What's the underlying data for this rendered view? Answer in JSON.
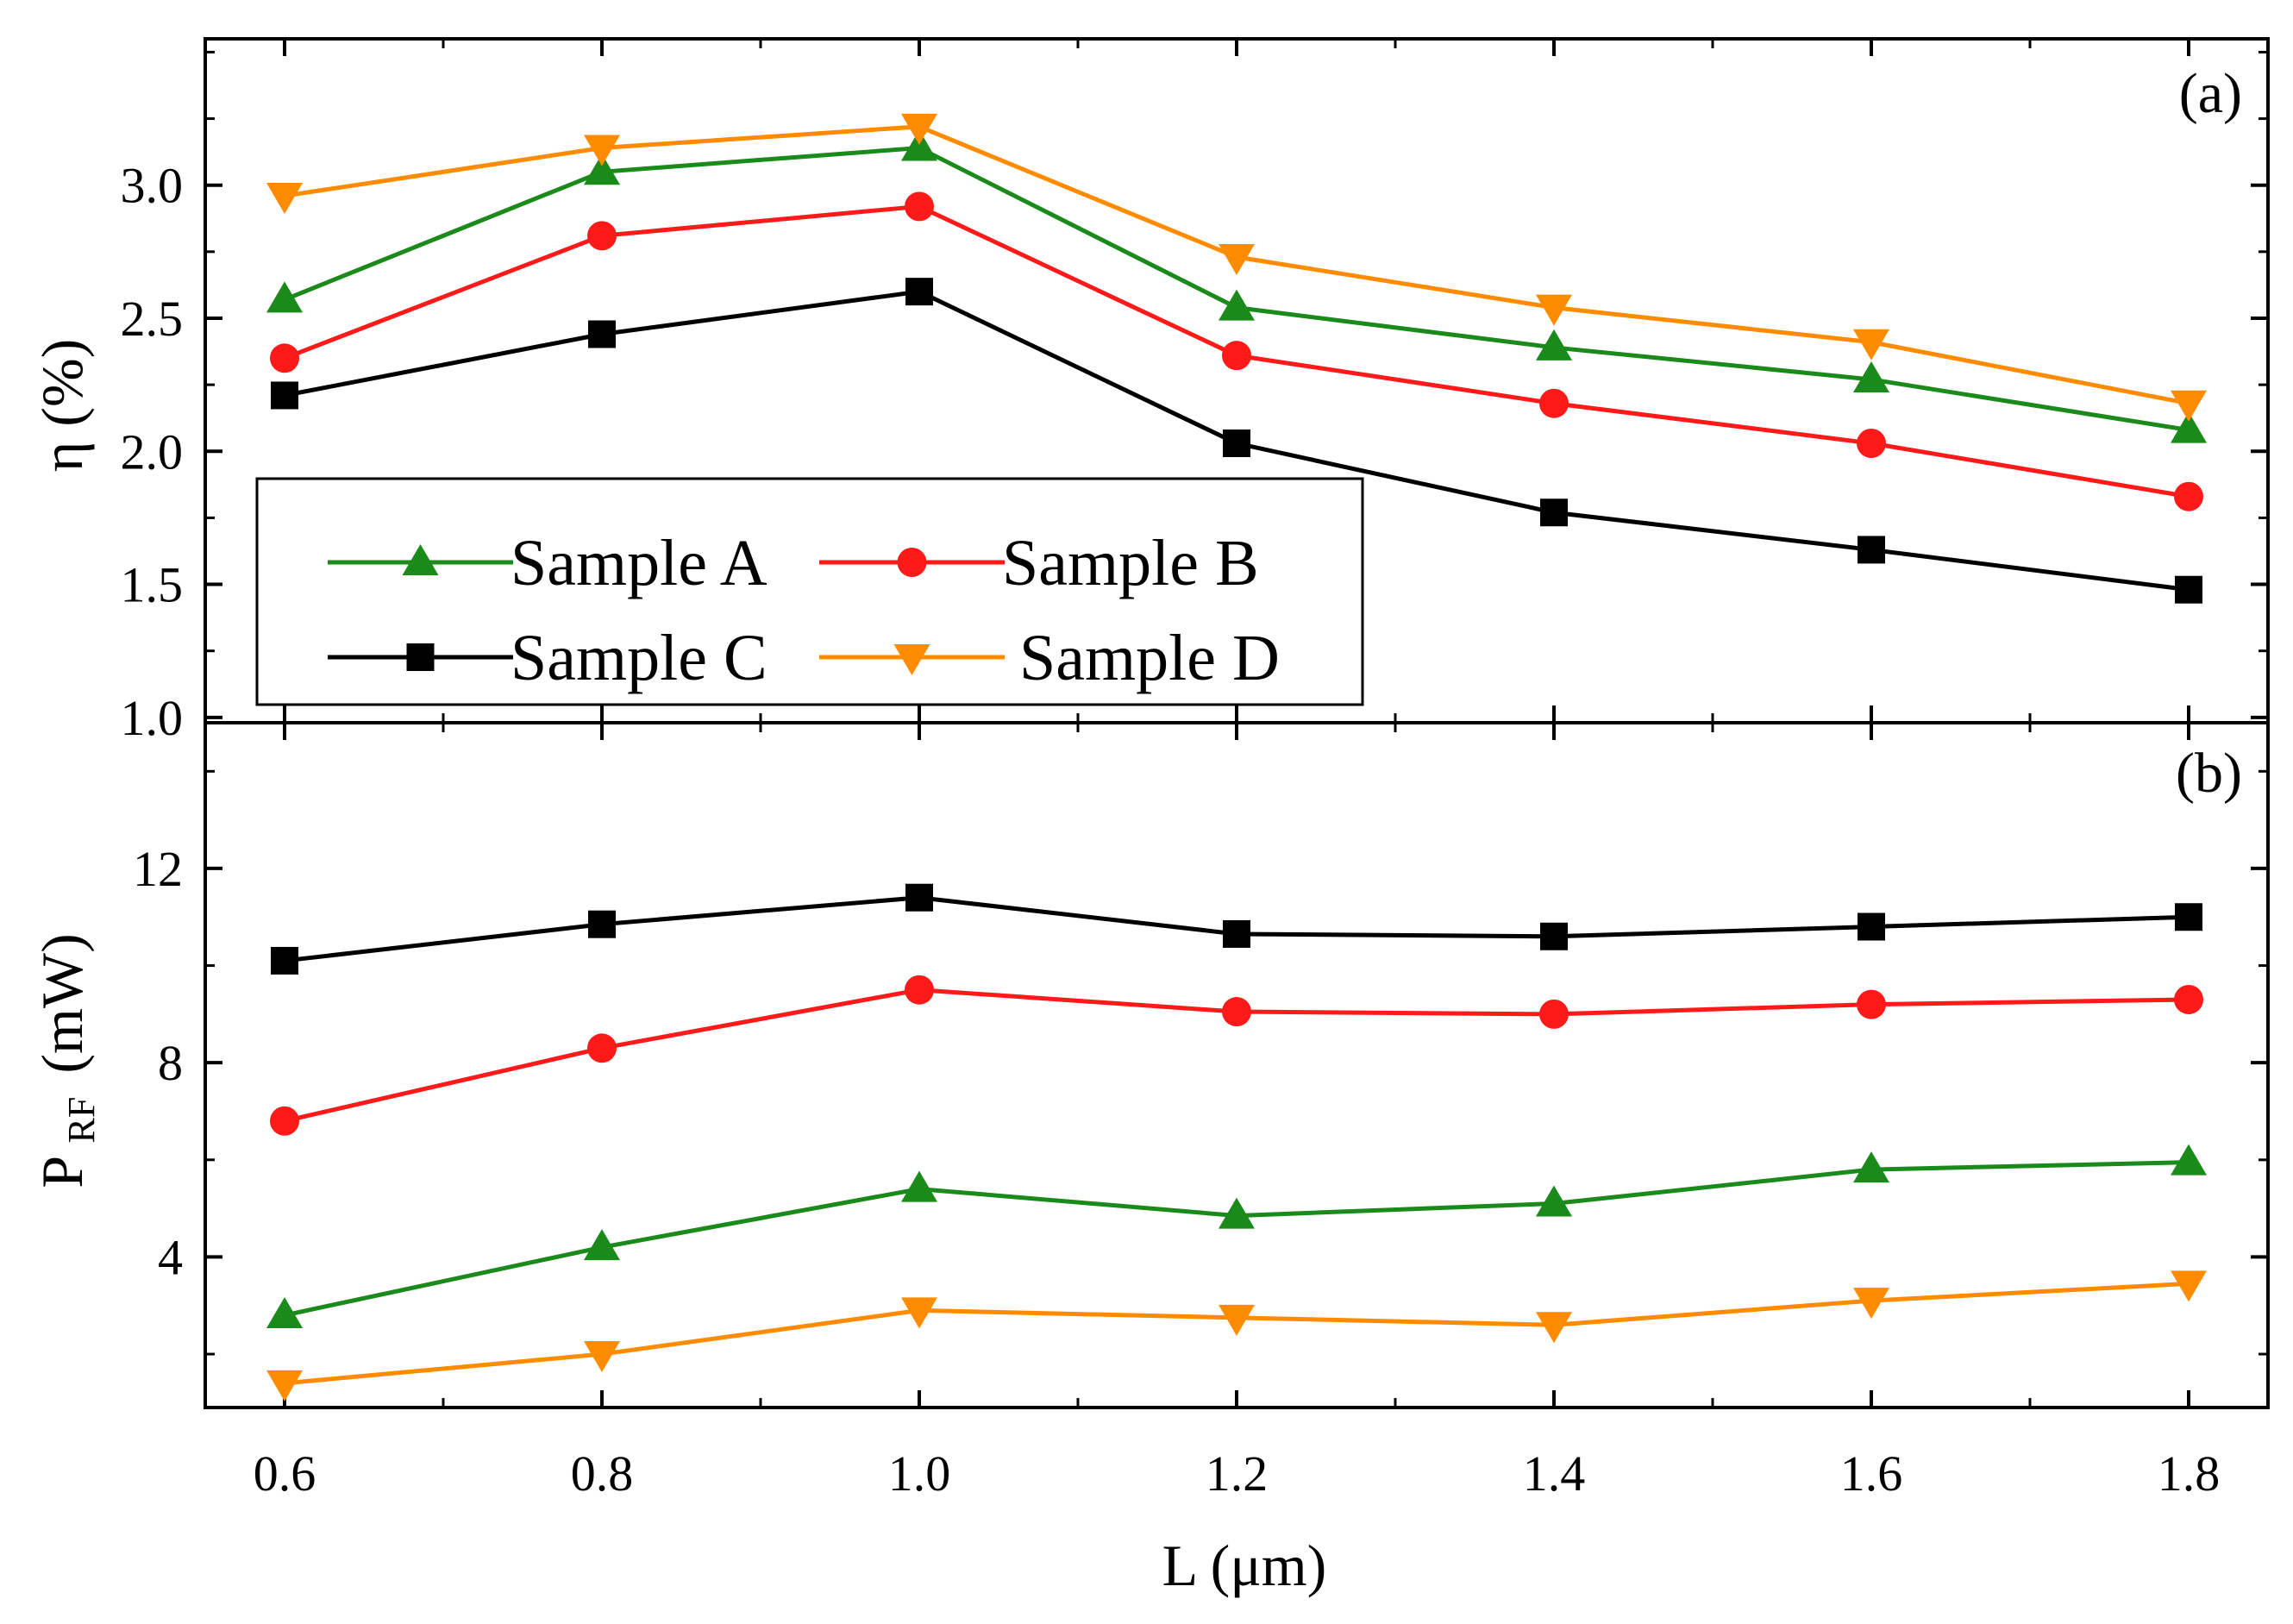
{
  "chart_data": [
    {
      "panel": "(a)",
      "type": "line",
      "ylabel": "η (%)",
      "ylabel_main": "η",
      "ylabel_unit": "(%)",
      "ylim": [
        0.98,
        3.55
      ],
      "yticks": [
        1.0,
        1.5,
        2.0,
        2.5,
        3.0
      ],
      "ytick_labels": [
        "1.0",
        "1.5",
        "2.0",
        "2.5",
        "3.0"
      ],
      "x": [
        0.6,
        0.8,
        1.0,
        1.2,
        1.4,
        1.6,
        1.8
      ],
      "series": [
        {
          "name": "Sample A",
          "color": "#1a8a1a",
          "marker": "triangle-up",
          "values": [
            2.57,
            3.05,
            3.14,
            2.54,
            2.39,
            2.27,
            2.08
          ]
        },
        {
          "name": "Sample B",
          "color": "#ff1a1a",
          "marker": "circle",
          "values": [
            2.35,
            2.81,
            2.92,
            2.36,
            2.18,
            2.03,
            1.83
          ]
        },
        {
          "name": "Sample C",
          "color": "#000000",
          "marker": "square",
          "values": [
            2.21,
            2.44,
            2.6,
            2.03,
            1.77,
            1.63,
            1.48
          ]
        },
        {
          "name": "Sample D",
          "color": "#ff8c00",
          "marker": "triangle-down",
          "values": [
            2.96,
            3.14,
            3.22,
            2.73,
            2.54,
            2.41,
            2.18
          ]
        }
      ],
      "legend": {
        "placement": "lower-left",
        "entries": [
          "Sample A",
          "Sample B",
          "Sample C",
          "Sample D"
        ]
      }
    },
    {
      "panel": "(b)",
      "type": "line",
      "ylabel": "P_RF (mW)",
      "ylabel_main": "P",
      "ylabel_sub": "RF",
      "ylabel_unit": "(mW)",
      "ylim": [
        0.9,
        15.0
      ],
      "yticks": [
        4,
        8,
        12
      ],
      "ytick_labels": [
        "4",
        "8",
        "12"
      ],
      "x": [
        0.6,
        0.8,
        1.0,
        1.2,
        1.4,
        1.6,
        1.8
      ],
      "series": [
        {
          "name": "Sample A",
          "color": "#1a8a1a",
          "marker": "triangle-up",
          "values": [
            2.8,
            4.2,
            5.4,
            4.85,
            5.1,
            5.8,
            5.95
          ]
        },
        {
          "name": "Sample B",
          "color": "#ff1a1a",
          "marker": "circle",
          "values": [
            6.8,
            8.3,
            9.5,
            9.05,
            9.0,
            9.2,
            9.3
          ]
        },
        {
          "name": "Sample C",
          "color": "#000000",
          "marker": "square",
          "values": [
            10.1,
            10.85,
            11.4,
            10.65,
            10.6,
            10.8,
            11.0
          ]
        },
        {
          "name": "Sample D",
          "color": "#ff8c00",
          "marker": "triangle-down",
          "values": [
            1.4,
            2.0,
            2.9,
            2.75,
            2.6,
            3.1,
            3.45
          ]
        }
      ]
    }
  ],
  "xaxis": {
    "label": "L (μm)",
    "xlim": [
      0.55,
      1.85
    ],
    "ticks": [
      0.6,
      0.8,
      1.0,
      1.2,
      1.4,
      1.6,
      1.8
    ],
    "tick_labels": [
      "0.6",
      "0.8",
      "1.0",
      "1.2",
      "1.4",
      "1.6",
      "1.8"
    ]
  }
}
